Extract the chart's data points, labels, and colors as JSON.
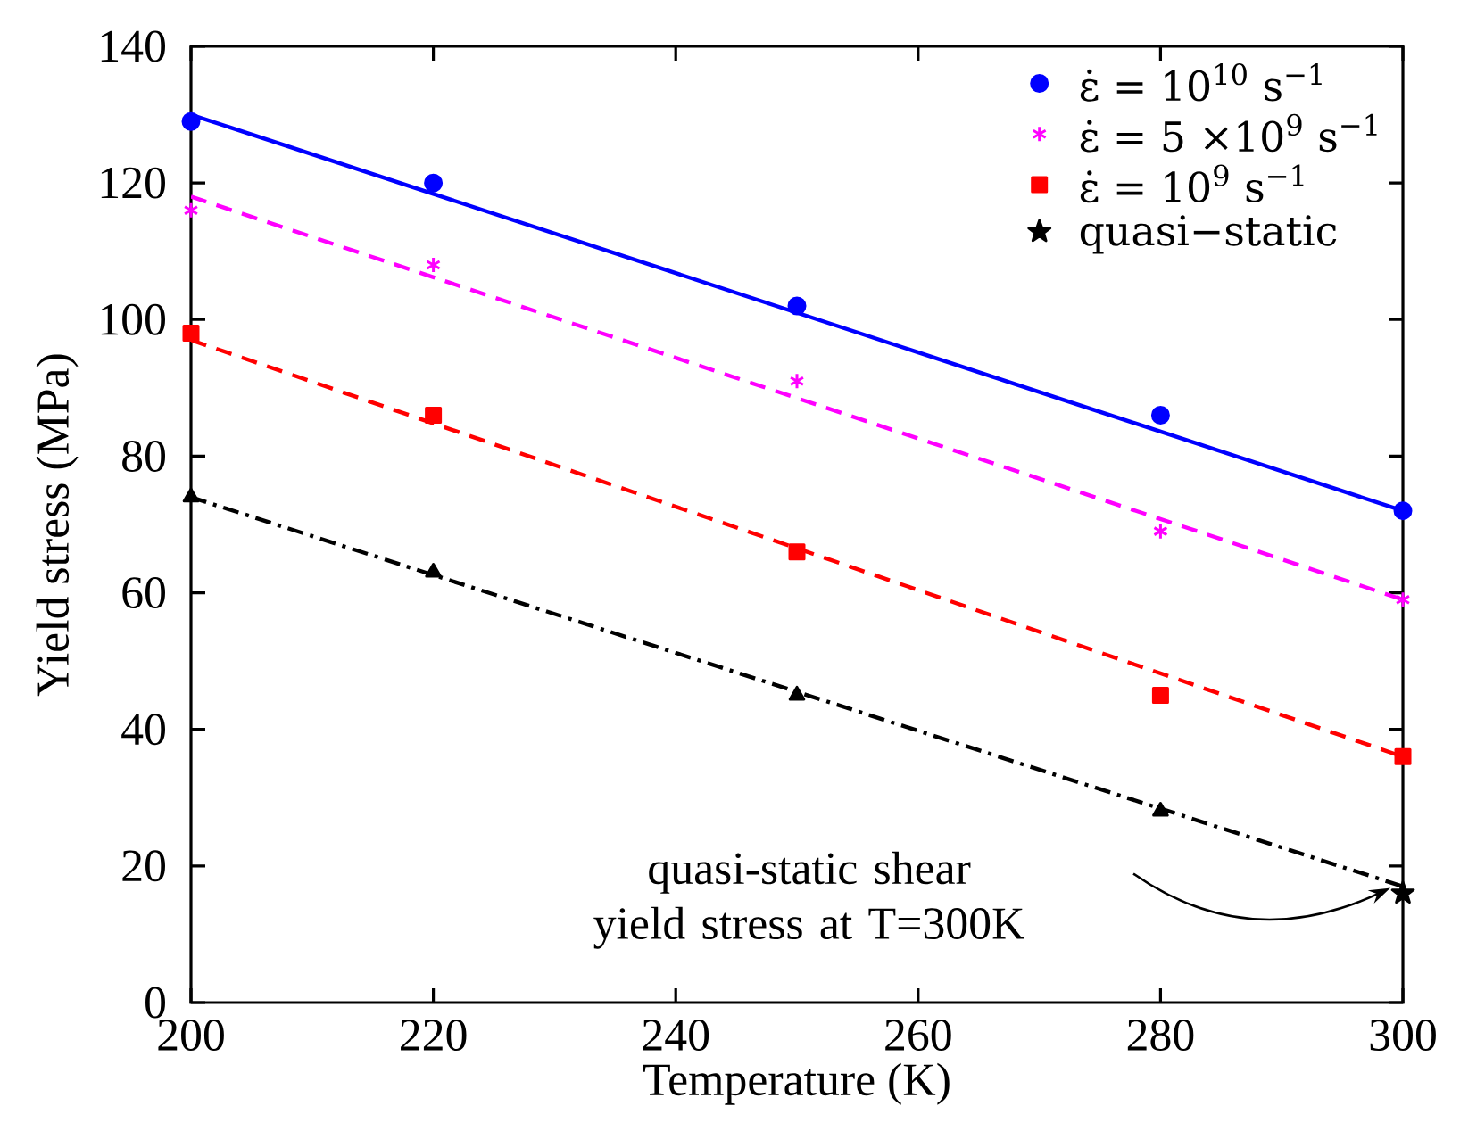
{
  "chart_data": {
    "type": "scatter",
    "xlabel": "Temperature (K)",
    "ylabel": "Yield stress (MPa)",
    "xlim": [
      200,
      300
    ],
    "xticks": [
      200,
      220,
      240,
      260,
      280,
      300
    ],
    "ylim": [
      0,
      140
    ],
    "yticks": [
      0,
      20,
      40,
      60,
      80,
      100,
      120,
      140
    ],
    "grid": false,
    "legend": "top right",
    "annotations": [
      "quasi-static shear yield stress at T=300K"
    ],
    "series": [
      {
        "name": "ε̇ = 10$^{10}$ s$^{−1}$",
        "marker": "circle",
        "color": "#0000ff",
        "x": [
          200,
          220,
          250,
          280,
          300
        ],
        "values": [
          129,
          120,
          102,
          86,
          72
        ]
      },
      {
        "name": "ε̇ = 5 ×10$^{9}$ s$^{−1}$",
        "marker": "cross",
        "color": "#ff00ff",
        "x": [
          200,
          220,
          250,
          280,
          300
        ],
        "values": [
          116,
          108,
          91,
          69,
          59
        ]
      },
      {
        "name": "ε̇ = 10$^{9}$ s$^{−1}$",
        "marker": "square",
        "color": "#ff0000",
        "x": [
          200,
          220,
          250,
          280,
          300
        ],
        "values": [
          98,
          86,
          66,
          45,
          36
        ]
      },
      {
        "name": "quasi−static",
        "marker": "star",
        "color": "#000000",
        "x": [
          300
        ],
        "values": [
          16
        ]
      },
      {
        "marker": "triangle",
        "color": "#000000",
        "x": [
          200,
          220,
          250,
          280
        ],
        "values": [
          74,
          63,
          45,
          28
        ]
      },
      {
        "type": "line",
        "line_style": "solid",
        "color": "#0000ff",
        "x": [
          200,
          300
        ],
        "values": [
          130,
          72
        ]
      },
      {
        "type": "line",
        "line_style": "dashed",
        "color": "#ff00ff",
        "x": [
          200,
          300
        ],
        "values": [
          118,
          59
        ]
      },
      {
        "type": "line",
        "line_style": "dashed",
        "color": "#ff0000",
        "x": [
          200,
          300
        ],
        "values": [
          97,
          36
        ]
      },
      {
        "type": "line",
        "line_style": "dashdot",
        "color": "#000000",
        "x": [
          200,
          300
        ],
        "values": [
          74,
          17
        ]
      }
    ]
  }
}
